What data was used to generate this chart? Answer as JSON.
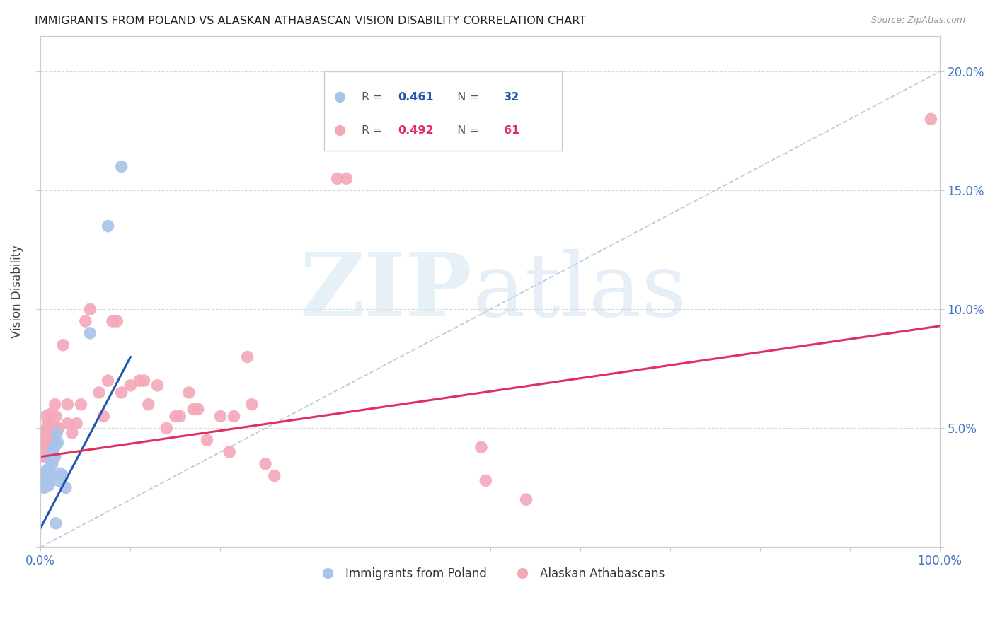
{
  "title": "IMMIGRANTS FROM POLAND VS ALASKAN ATHABASCAN VISION DISABILITY CORRELATION CHART",
  "source": "Source: ZipAtlas.com",
  "ylabel": "Vision Disability",
  "xlim": [
    0.0,
    1.0
  ],
  "ylim": [
    0.0,
    0.215
  ],
  "yticks": [
    0.0,
    0.05,
    0.1,
    0.15,
    0.2
  ],
  "ytick_labels_right": [
    "",
    "5.0%",
    "10.0%",
    "15.0%",
    "20.0%"
  ],
  "xticks": [
    0.0,
    0.1,
    0.2,
    0.3,
    0.4,
    0.5,
    0.6,
    0.7,
    0.8,
    0.9,
    1.0
  ],
  "xtick_labels": [
    "0.0%",
    "",
    "",
    "",
    "",
    "",
    "",
    "",
    "",
    "",
    "100.0%"
  ],
  "blue_R": 0.461,
  "blue_N": 32,
  "pink_R": 0.492,
  "pink_N": 61,
  "blue_color": "#a8c4e8",
  "pink_color": "#f4a8b8",
  "blue_line_color": "#2255b0",
  "pink_line_color": "#e03060",
  "diag_color": "#b8ccdc",
  "legend_label_blue": "Immigrants from Poland",
  "legend_label_pink": "Alaskan Athabascans",
  "blue_points": [
    [
      0.004,
      0.028
    ],
    [
      0.004,
      0.025
    ],
    [
      0.005,
      0.03
    ],
    [
      0.005,
      0.027
    ],
    [
      0.006,
      0.029
    ],
    [
      0.006,
      0.032
    ],
    [
      0.007,
      0.026
    ],
    [
      0.007,
      0.031
    ],
    [
      0.008,
      0.028
    ],
    [
      0.008,
      0.03
    ],
    [
      0.009,
      0.033
    ],
    [
      0.009,
      0.026
    ],
    [
      0.01,
      0.032
    ],
    [
      0.01,
      0.029
    ],
    [
      0.011,
      0.038
    ],
    [
      0.011,
      0.031
    ],
    [
      0.012,
      0.036
    ],
    [
      0.013,
      0.035
    ],
    [
      0.014,
      0.04
    ],
    [
      0.015,
      0.042
    ],
    [
      0.016,
      0.038
    ],
    [
      0.017,
      0.043
    ],
    [
      0.018,
      0.048
    ],
    [
      0.019,
      0.044
    ],
    [
      0.02,
      0.028
    ],
    [
      0.022,
      0.031
    ],
    [
      0.025,
      0.03
    ],
    [
      0.028,
      0.025
    ],
    [
      0.055,
      0.09
    ],
    [
      0.075,
      0.135
    ],
    [
      0.09,
      0.16
    ],
    [
      0.017,
      0.01
    ]
  ],
  "pink_points": [
    [
      0.003,
      0.044
    ],
    [
      0.004,
      0.038
    ],
    [
      0.005,
      0.042
    ],
    [
      0.005,
      0.048
    ],
    [
      0.006,
      0.055
    ],
    [
      0.006,
      0.045
    ],
    [
      0.007,
      0.04
    ],
    [
      0.007,
      0.05
    ],
    [
      0.008,
      0.046
    ],
    [
      0.008,
      0.038
    ],
    [
      0.009,
      0.052
    ],
    [
      0.009,
      0.044
    ],
    [
      0.01,
      0.048
    ],
    [
      0.01,
      0.04
    ],
    [
      0.011,
      0.056
    ],
    [
      0.012,
      0.05
    ],
    [
      0.013,
      0.048
    ],
    [
      0.014,
      0.045
    ],
    [
      0.015,
      0.042
    ],
    [
      0.016,
      0.06
    ],
    [
      0.017,
      0.055
    ],
    [
      0.018,
      0.05
    ],
    [
      0.02,
      0.05
    ],
    [
      0.025,
      0.085
    ],
    [
      0.03,
      0.06
    ],
    [
      0.03,
      0.052
    ],
    [
      0.035,
      0.048
    ],
    [
      0.04,
      0.052
    ],
    [
      0.045,
      0.06
    ],
    [
      0.05,
      0.095
    ],
    [
      0.055,
      0.1
    ],
    [
      0.065,
      0.065
    ],
    [
      0.07,
      0.055
    ],
    [
      0.075,
      0.07
    ],
    [
      0.08,
      0.095
    ],
    [
      0.085,
      0.095
    ],
    [
      0.09,
      0.065
    ],
    [
      0.1,
      0.068
    ],
    [
      0.11,
      0.07
    ],
    [
      0.115,
      0.07
    ],
    [
      0.12,
      0.06
    ],
    [
      0.13,
      0.068
    ],
    [
      0.14,
      0.05
    ],
    [
      0.15,
      0.055
    ],
    [
      0.155,
      0.055
    ],
    [
      0.165,
      0.065
    ],
    [
      0.17,
      0.058
    ],
    [
      0.175,
      0.058
    ],
    [
      0.185,
      0.045
    ],
    [
      0.2,
      0.055
    ],
    [
      0.21,
      0.04
    ],
    [
      0.215,
      0.055
    ],
    [
      0.23,
      0.08
    ],
    [
      0.235,
      0.06
    ],
    [
      0.25,
      0.035
    ],
    [
      0.26,
      0.03
    ],
    [
      0.33,
      0.155
    ],
    [
      0.34,
      0.155
    ],
    [
      0.49,
      0.042
    ],
    [
      0.495,
      0.028
    ],
    [
      0.54,
      0.02
    ],
    [
      0.99,
      0.18
    ]
  ],
  "blue_line": {
    "x0": 0.0,
    "y0": 0.008,
    "x1": 0.1,
    "y1": 0.08
  },
  "pink_line": {
    "x0": 0.0,
    "y0": 0.038,
    "x1": 1.0,
    "y1": 0.093
  },
  "diag_line": {
    "x0": 0.0,
    "y0": 0.0,
    "x1": 1.0,
    "y1": 0.2
  }
}
